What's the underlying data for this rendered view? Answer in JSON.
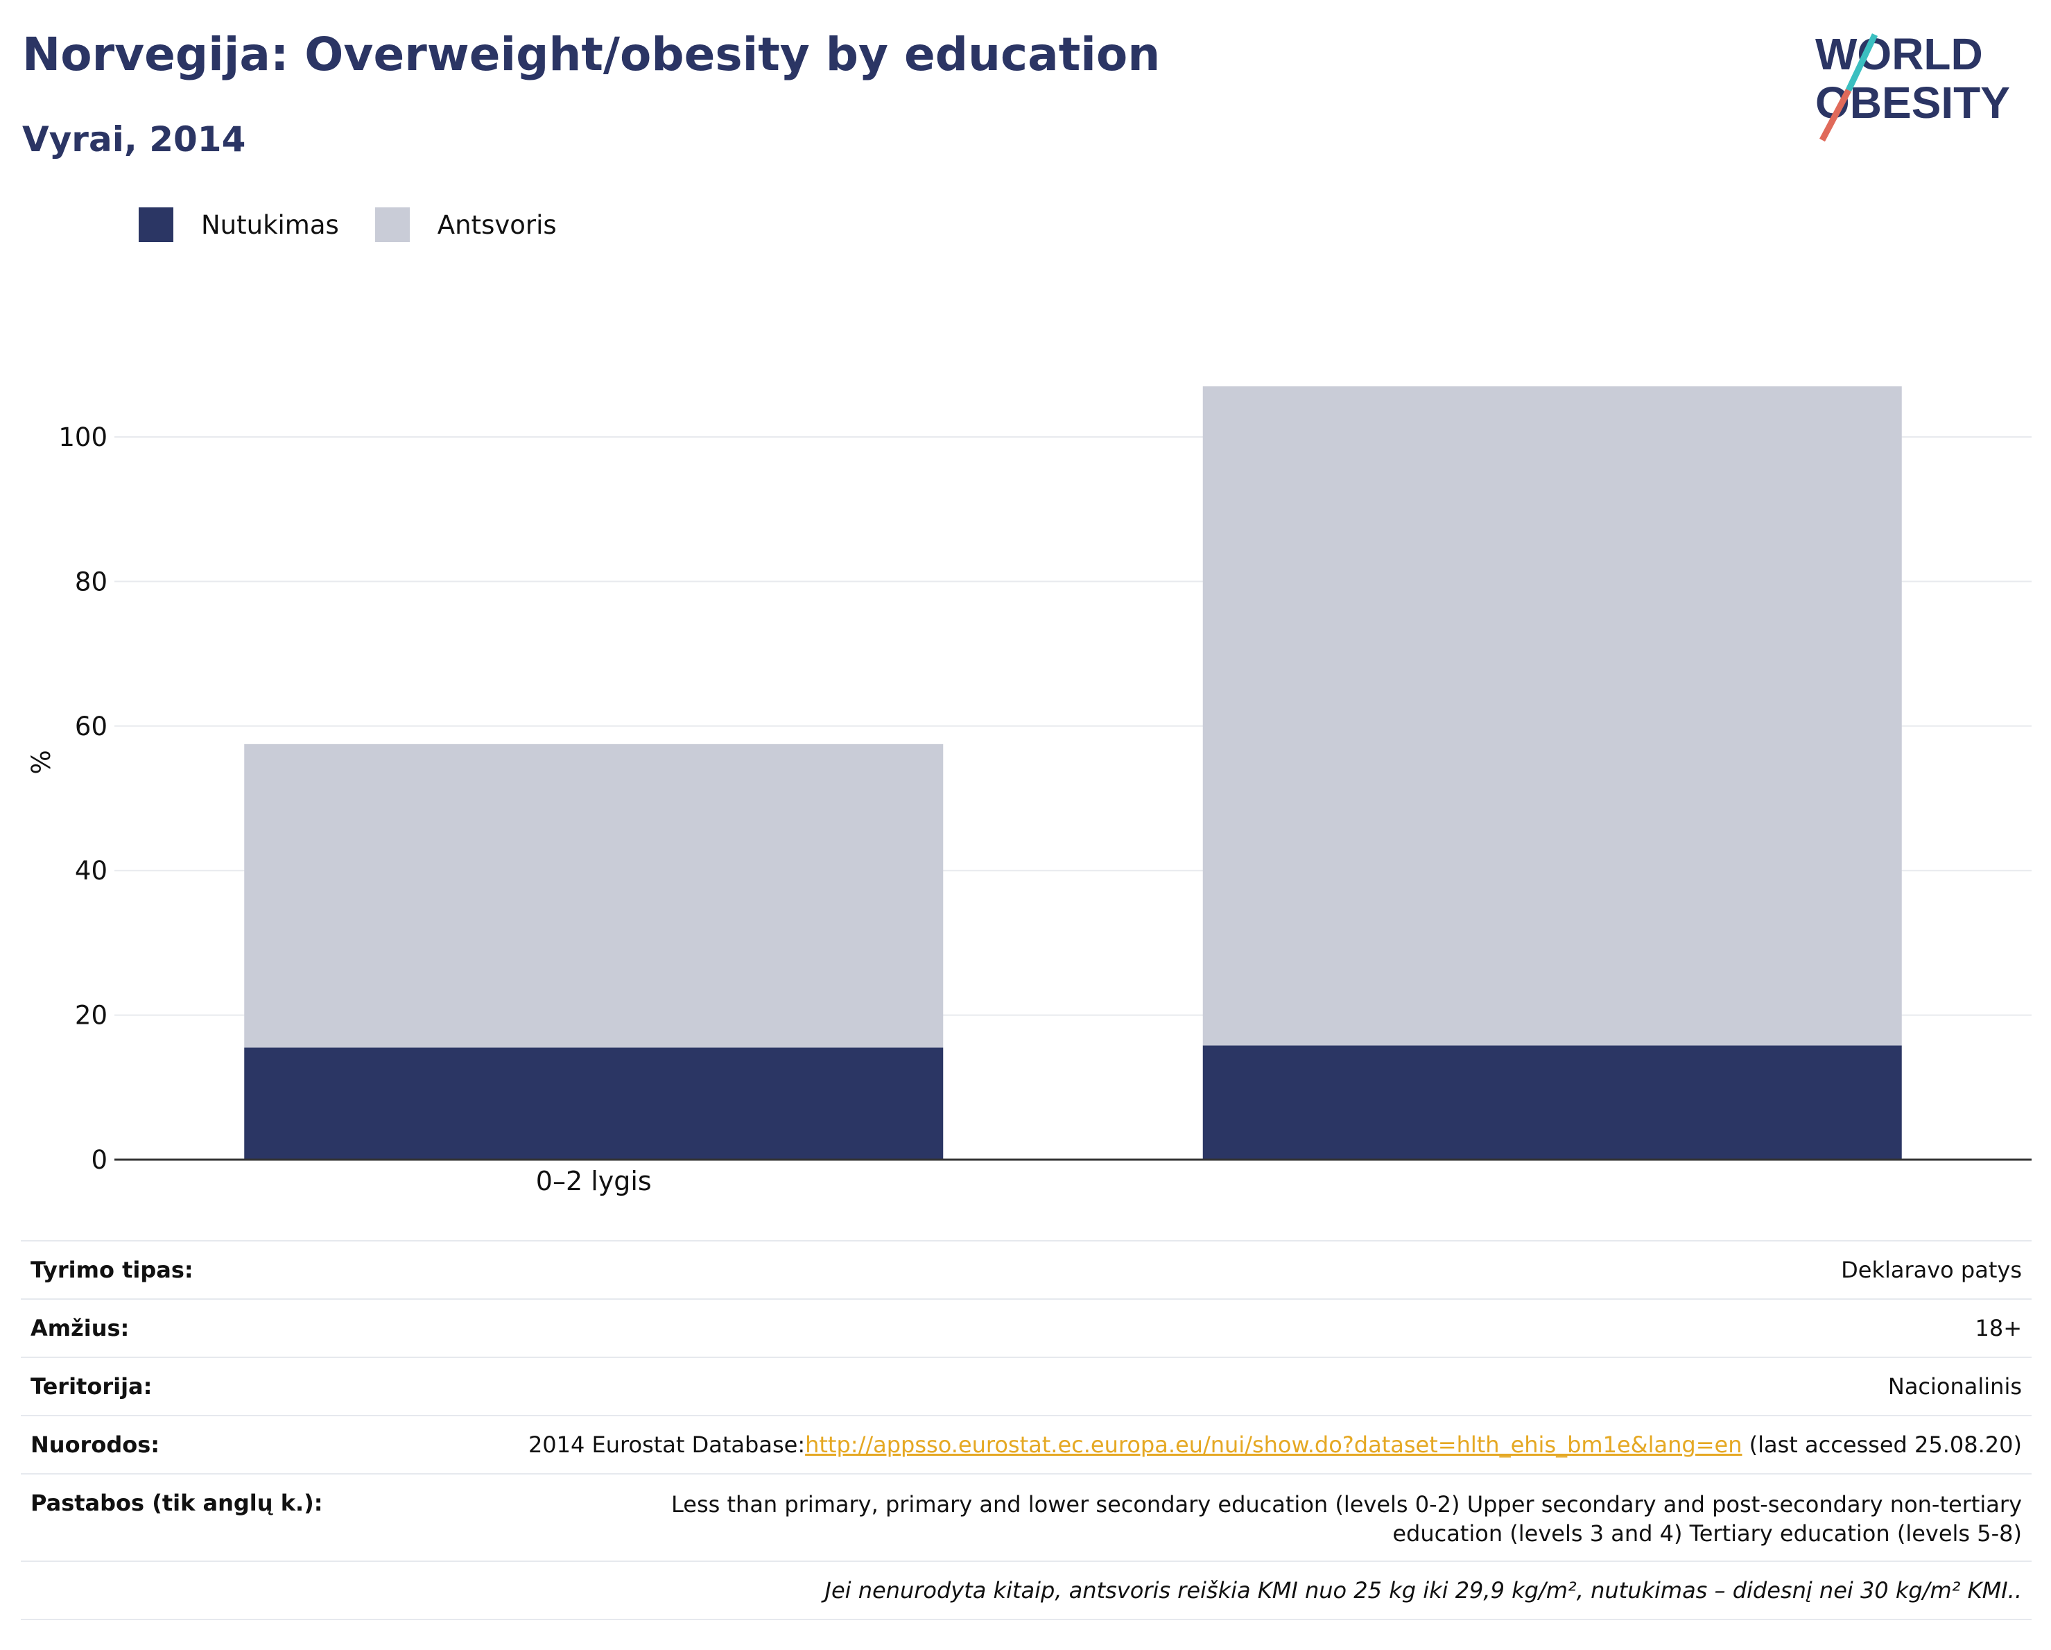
{
  "header": {
    "title": "Norvegija: Overweight/obesity by education",
    "subtitle": "Vyrai, 2014"
  },
  "logo": {
    "line1": "WORLD",
    "line2": "OBESITY"
  },
  "legend": [
    {
      "label": "Nutukimas",
      "color": "#2b3664"
    },
    {
      "label": "Antsvoris",
      "color": "#c9ccd7"
    }
  ],
  "chart_data": {
    "type": "bar",
    "stacked": true,
    "categories": [
      "0–2 lygis",
      ""
    ],
    "series": [
      {
        "name": "Nutukimas",
        "color": "#2b3664",
        "values": [
          15.5,
          15.8
        ]
      },
      {
        "name": "Antsvoris",
        "color": "#c9ccd7",
        "values": [
          42.0,
          91.2
        ]
      }
    ],
    "ylabel": "%",
    "ylim": [
      0,
      110
    ],
    "yticks": [
      0,
      20,
      40,
      60,
      80,
      100
    ],
    "grid": true
  },
  "info": {
    "survey_label": "Tyrimo tipas:",
    "survey_value": "Deklaravo patys",
    "age_label": "Amžius:",
    "age_value": "18+",
    "territory_label": "Teritorija:",
    "territory_value": "Nacionalinis",
    "refs_label": "Nuorodos:",
    "refs_prefix": "2014 Eurostat Database:",
    "refs_link": "http://appsso.eurostat.ec.europa.eu/nui/show.do?dataset=hlth_ehis_bm1e&lang=en",
    "refs_suffix": " (last accessed 25.08.20)",
    "notes_label": "Pastabos (tik anglų k.):",
    "notes_value": "Less than primary, primary and lower secondary education (levels 0-2) Upper secondary and post-secondary non-tertiary education (levels 3 and 4) Tertiary education (levels 5-8)",
    "footnote": "Jei nenurodyta kitaip, antsvoris reiškia KMI nuo 25 kg iki 29,9 kg/m², nutukimas – didesnį nei 30 kg/m² KMI.."
  }
}
